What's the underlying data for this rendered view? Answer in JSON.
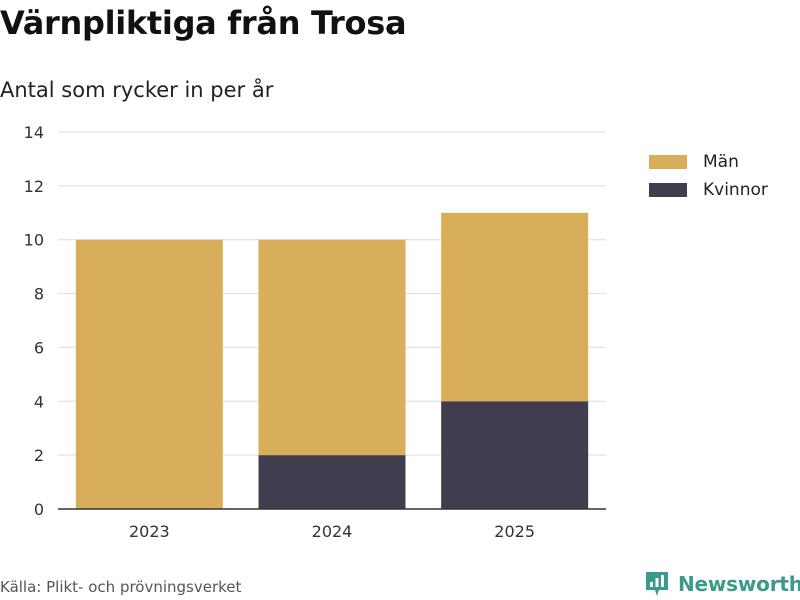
{
  "title": "Värnpliktiga från Trosa",
  "subtitle": "Antal som rycker in per år",
  "source": "Källa: Plikt- och prövningsverket",
  "brand": "Newsworthy",
  "colors": {
    "Män": "#d9ae5a",
    "Kvinnor": "#403e4e",
    "grid": "#dedede",
    "axis": "#333333",
    "brand": "#3a9a8c"
  },
  "chart_data": {
    "type": "bar",
    "stacked": true,
    "title": "Värnpliktiga från Trosa",
    "subtitle": "Antal som rycker in per år",
    "xlabel": "",
    "ylabel": "",
    "categories": [
      "2023",
      "2024",
      "2025"
    ],
    "series": [
      {
        "name": "Kvinnor",
        "values": [
          0,
          2,
          4
        ]
      },
      {
        "name": "Män",
        "values": [
          10,
          8,
          7
        ]
      }
    ],
    "ylim": [
      0,
      14
    ],
    "yticks": [
      0,
      2,
      4,
      6,
      8,
      10,
      12,
      14
    ],
    "grid": true,
    "legend": "right",
    "legend_order": [
      "Män",
      "Kvinnor"
    ]
  }
}
